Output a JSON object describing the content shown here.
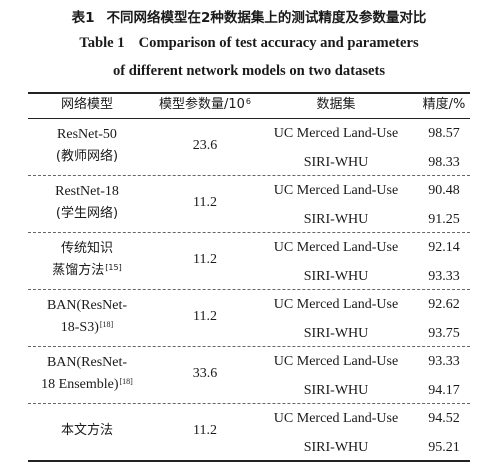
{
  "caption": {
    "zh_number": "表1",
    "zh_title": "不同网络模型在2种数据集上的测试精度及参数量对比",
    "en_number": "Table 1",
    "en_line1": "Comparison of test accuracy and parameters",
    "en_line2": "of different network models on two datasets"
  },
  "table": {
    "headers": {
      "model": "网络模型",
      "params": "模型参数量/10",
      "params_exp": "6",
      "dataset": "数据集",
      "accuracy": "精度/%"
    },
    "rows": [
      {
        "model_line1": "ResNet-50",
        "model_line2": "(教师网络)",
        "model_ref": "",
        "params": "23.6",
        "results": [
          {
            "dataset": "UC Merced Land-Use",
            "accuracy": "98.57"
          },
          {
            "dataset": "SIRI-WHU",
            "accuracy": "98.33"
          }
        ]
      },
      {
        "model_line1": "RestNet-18",
        "model_line2": "(学生网络)",
        "model_ref": "",
        "params": "11.2",
        "results": [
          {
            "dataset": "UC Merced Land-Use",
            "accuracy": "90.48"
          },
          {
            "dataset": "SIRI-WHU",
            "accuracy": "91.25"
          }
        ]
      },
      {
        "model_line1": "传统知识",
        "model_line2": "蒸馏方法",
        "model_ref": "[15]",
        "params": "11.2",
        "results": [
          {
            "dataset": "UC Merced Land-Use",
            "accuracy": "92.14"
          },
          {
            "dataset": "SIRI-WHU",
            "accuracy": "93.33"
          }
        ]
      },
      {
        "model_line1": "BAN(ResNet-",
        "model_line2": "18-S3)",
        "model_ref": "[18]",
        "params": "11.2",
        "results": [
          {
            "dataset": "UC Merced Land-Use",
            "accuracy": "92.62"
          },
          {
            "dataset": "SIRI-WHU",
            "accuracy": "93.75"
          }
        ]
      },
      {
        "model_line1": "BAN(ResNet-",
        "model_line2": "18 Ensemble)",
        "model_ref": "[18]",
        "params": "33.6",
        "results": [
          {
            "dataset": "UC Merced Land-Use",
            "accuracy": "93.33"
          },
          {
            "dataset": "SIRI-WHU",
            "accuracy": "94.17"
          }
        ]
      },
      {
        "model_line1": "本文方法",
        "model_line2": "",
        "model_ref": "",
        "params": "11.2",
        "results": [
          {
            "dataset": "UC Merced Land-Use",
            "accuracy": "94.52"
          },
          {
            "dataset": "SIRI-WHU",
            "accuracy": "95.21"
          }
        ]
      }
    ]
  }
}
